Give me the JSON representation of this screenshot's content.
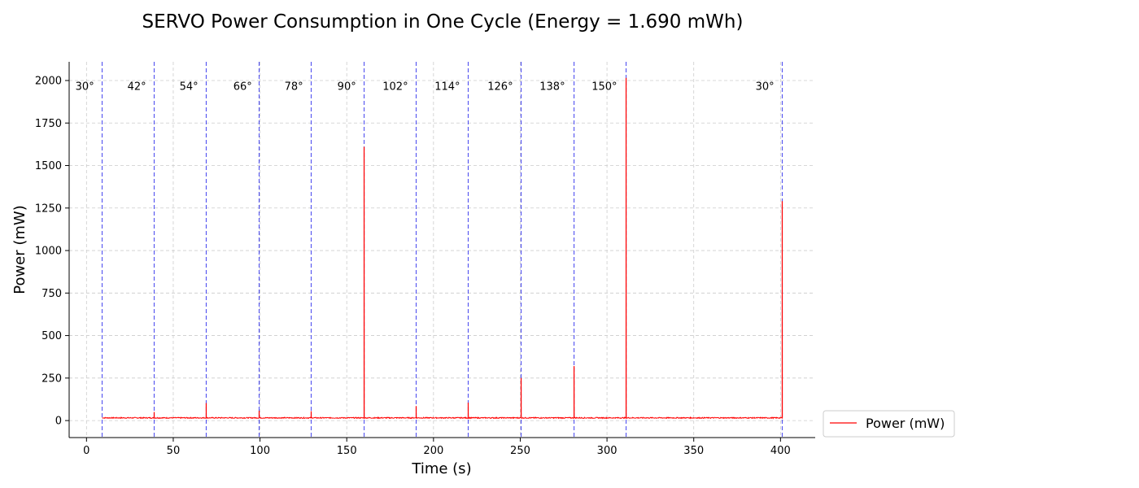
{
  "chart_data": {
    "type": "line",
    "title": "SERVO Power Consumption in One Cycle (Energy = 1.690 mWh)",
    "xlabel": "Time (s)",
    "ylabel": "Power (mW)",
    "xlim": [
      -10,
      420
    ],
    "ylim": [
      -100,
      2110
    ],
    "xticks": [
      0,
      50,
      100,
      150,
      200,
      250,
      300,
      350,
      400
    ],
    "yticks": [
      0,
      250,
      500,
      750,
      1000,
      1250,
      1500,
      1750,
      2000
    ],
    "grid": true,
    "legend_position": "outside-bottom-right",
    "series": [
      {
        "name": "Power (mW)",
        "color": "#ff0000",
        "baseline": 16,
        "x_range": [
          9,
          401
        ],
        "spikes": [
          {
            "x": 39,
            "y": 50
          },
          {
            "x": 69,
            "y": 102
          },
          {
            "x": 99.5,
            "y": 58
          },
          {
            "x": 129.5,
            "y": 55
          },
          {
            "x": 160,
            "y": 1610
          },
          {
            "x": 190,
            "y": 85
          },
          {
            "x": 220,
            "y": 105
          },
          {
            "x": 250.5,
            "y": 250
          },
          {
            "x": 281,
            "y": 320
          },
          {
            "x": 311,
            "y": 2015
          },
          {
            "x": 401,
            "y": 1290
          }
        ]
      }
    ],
    "vlines": {
      "color": "#3333ee",
      "x": [
        9,
        39,
        69,
        99.5,
        129.5,
        160,
        190,
        220,
        250.5,
        281,
        311,
        401
      ]
    },
    "angle_labels": [
      {
        "text": "30°",
        "x": -1
      },
      {
        "text": "42°",
        "x": 29
      },
      {
        "text": "54°",
        "x": 59
      },
      {
        "text": "66°",
        "x": 90
      },
      {
        "text": "78°",
        "x": 119.5
      },
      {
        "text": "90°",
        "x": 150
      },
      {
        "text": "102°",
        "x": 178
      },
      {
        "text": "114°",
        "x": 208
      },
      {
        "text": "126°",
        "x": 238.5
      },
      {
        "text": "138°",
        "x": 268.5
      },
      {
        "text": "150°",
        "x": 298.5
      },
      {
        "text": "30°",
        "x": 391
      }
    ],
    "angle_label_y": 1945
  }
}
